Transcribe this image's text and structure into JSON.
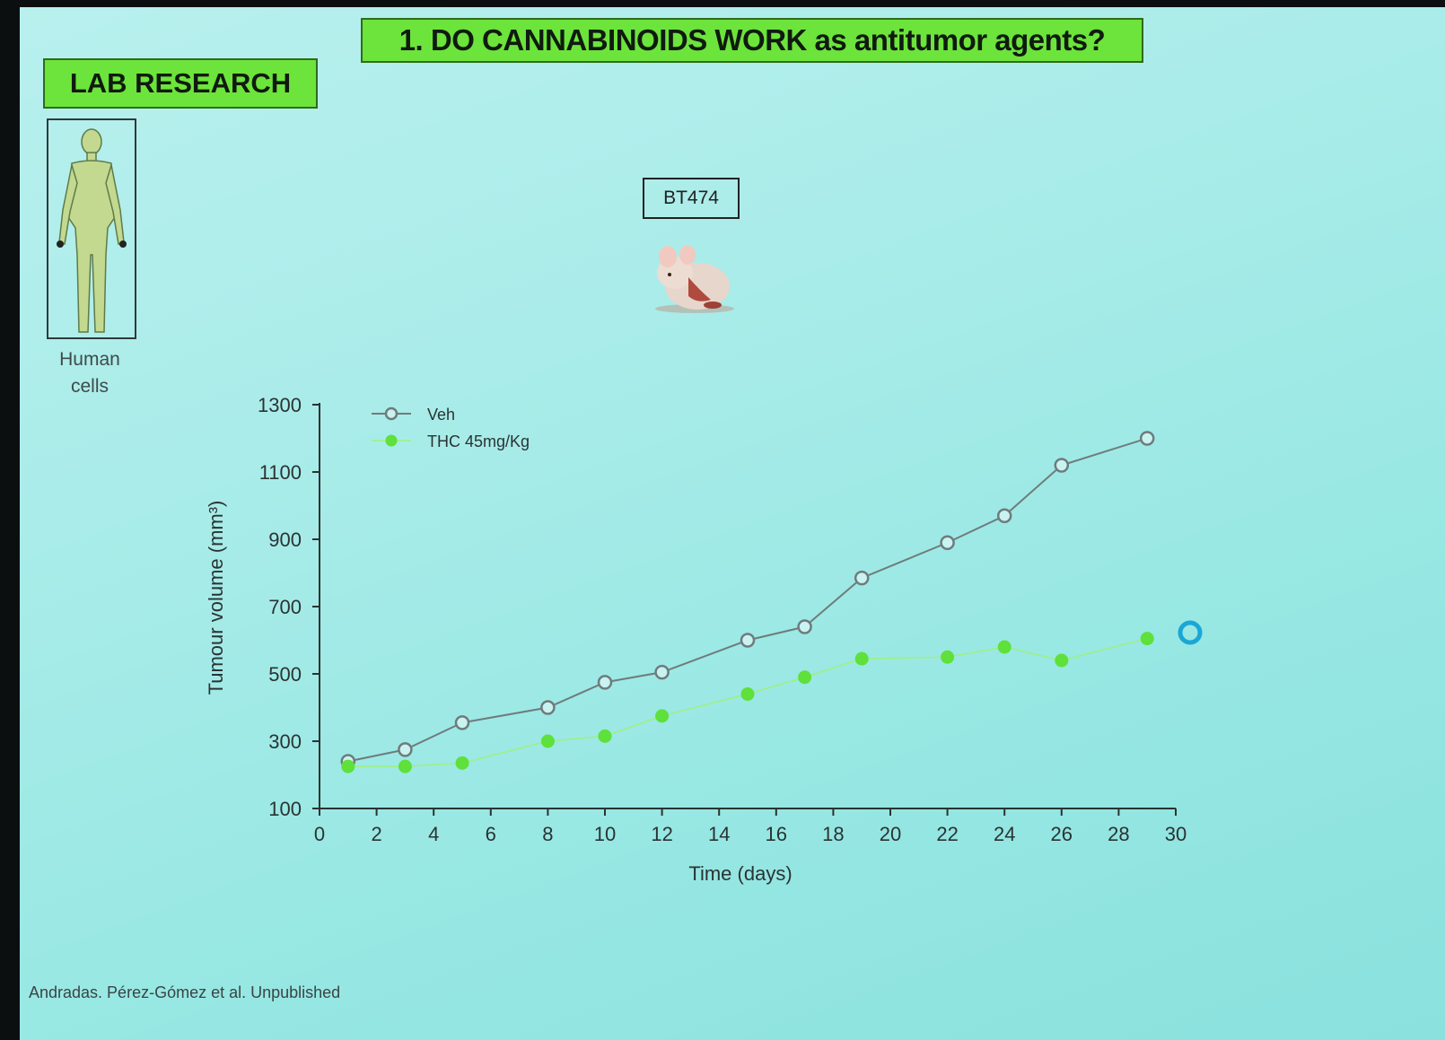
{
  "slide": {
    "title": "1. DO CANNABINOIDS WORK as antitumor agents?",
    "section_label": "LAB RESEARCH",
    "human_cells_label_line1": "Human",
    "human_cells_label_line2": "cells",
    "cell_line_label": "BT474",
    "footer": "Andradas. Pérez-Gómez et al. Unpublished"
  },
  "chart_data": {
    "type": "line",
    "xlabel": "Time  (days)",
    "ylabel": "Tumour  volume  (mm³)",
    "xlim": [
      0,
      30
    ],
    "ylim": [
      100,
      1300
    ],
    "xticks": [
      0,
      2,
      4,
      6,
      8,
      10,
      12,
      14,
      16,
      18,
      20,
      22,
      24,
      26,
      28,
      30
    ],
    "yticks": [
      100,
      300,
      500,
      700,
      900,
      1100,
      1300
    ],
    "legend_position": "top-left",
    "grid": false,
    "series": [
      {
        "name": "Veh",
        "color": "#6f7b7c",
        "marker": "open-circle",
        "x": [
          1,
          3,
          5,
          8,
          10,
          12,
          15,
          17,
          19,
          22,
          24,
          26,
          29
        ],
        "y": [
          240,
          275,
          355,
          400,
          475,
          505,
          600,
          640,
          785,
          890,
          970,
          1120,
          1200
        ]
      },
      {
        "name": "THC 45mg/Kg",
        "color": "#5fe03a",
        "marker": "filled-circle",
        "x": [
          1,
          3,
          5,
          8,
          10,
          12,
          15,
          17,
          19,
          22,
          24,
          26,
          29
        ],
        "y": [
          225,
          225,
          235,
          300,
          315,
          375,
          440,
          490,
          545,
          550,
          580,
          540,
          605
        ]
      }
    ]
  }
}
